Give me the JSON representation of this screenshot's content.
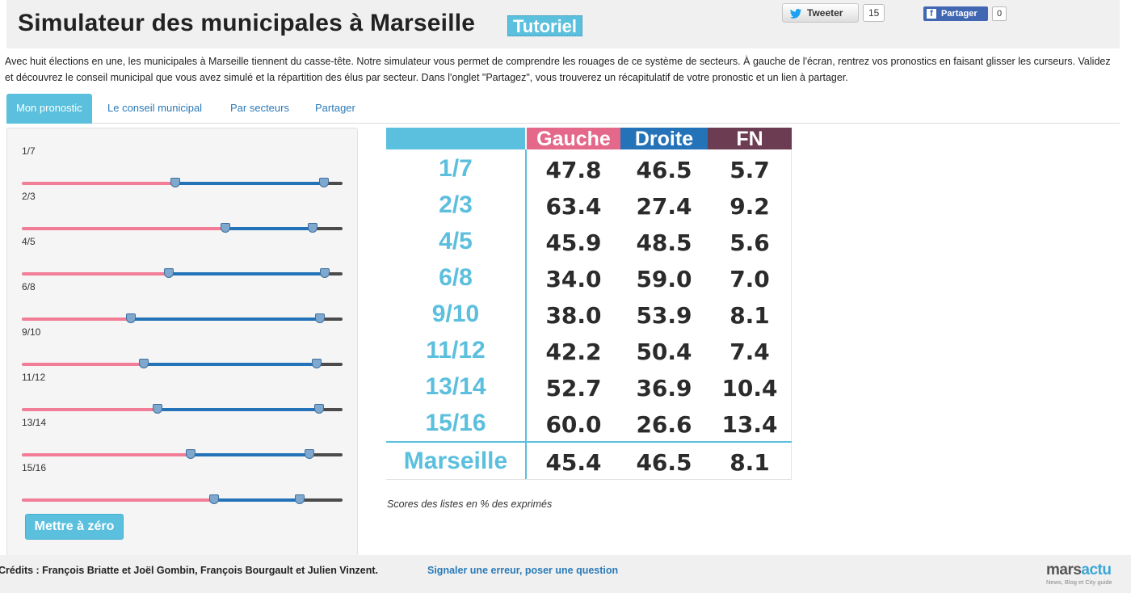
{
  "header": {
    "title": "Simulateur des municipales à Marseille",
    "tutoriel_label": "Tutoriel",
    "tweet_label": "Tweeter",
    "tweet_count": "15",
    "fb_label": "Partager",
    "fb_icon": "f",
    "fb_count": "0"
  },
  "intro": "Avec huit élections en une, les municipales à Marseille tiennent du casse-tête. Notre simulateur vous permet de comprendre les rouages de ce système de secteurs. À gauche de l'écran, rentrez vos pronostics en faisant glisser les curseurs. Validez et découvrez le conseil municipal que vous avez simulé et la répartition des élus par secteur. Dans l'onglet \"Partagez\", vous trouverez un récapitulatif de votre pronostic et un lien à partager.",
  "tabs": [
    {
      "label": "Mon pronostic",
      "active": true
    },
    {
      "label": "Le conseil municipal",
      "active": false
    },
    {
      "label": "Par secteurs",
      "active": false
    },
    {
      "label": "Partager",
      "active": false
    }
  ],
  "sliders": [
    {
      "label": "1/7",
      "gauche": 47.8,
      "droite": 46.5,
      "fn": 5.7
    },
    {
      "label": "2/3",
      "gauche": 63.4,
      "droite": 27.4,
      "fn": 9.2
    },
    {
      "label": "4/5",
      "gauche": 45.9,
      "droite": 48.5,
      "fn": 5.6
    },
    {
      "label": "6/8",
      "gauche": 34.0,
      "droite": 59.0,
      "fn": 7.0
    },
    {
      "label": "9/10",
      "gauche": 38.0,
      "droite": 53.9,
      "fn": 8.1
    },
    {
      "label": "11/12",
      "gauche": 42.2,
      "droite": 50.4,
      "fn": 7.4
    },
    {
      "label": "13/14",
      "gauche": 52.7,
      "droite": 36.9,
      "fn": 10.4
    },
    {
      "label": "15/16",
      "gauche": 60.0,
      "droite": 26.6,
      "fn": 13.4
    }
  ],
  "reset_label": "Mettre à zéro",
  "table": {
    "headers": {
      "gauche": "Gauche",
      "droite": "Droite",
      "fn": "FN"
    },
    "rows": [
      {
        "sector": "1/7",
        "gauche": "47.8",
        "droite": "46.5",
        "fn": "5.7"
      },
      {
        "sector": "2/3",
        "gauche": "63.4",
        "droite": "27.4",
        "fn": "9.2"
      },
      {
        "sector": "4/5",
        "gauche": "45.9",
        "droite": "48.5",
        "fn": "5.6"
      },
      {
        "sector": "6/8",
        "gauche": "34.0",
        "droite": "59.0",
        "fn": "7.0"
      },
      {
        "sector": "9/10",
        "gauche": "38.0",
        "droite": "53.9",
        "fn": "8.1"
      },
      {
        "sector": "11/12",
        "gauche": "42.2",
        "droite": "50.4",
        "fn": "7.4"
      },
      {
        "sector": "13/14",
        "gauche": "52.7",
        "droite": "36.9",
        "fn": "10.4"
      },
      {
        "sector": "15/16",
        "gauche": "60.0",
        "droite": "26.6",
        "fn": "13.4"
      }
    ],
    "total": {
      "sector": "Marseille",
      "gauche": "45.4",
      "droite": "46.5",
      "fn": "8.1"
    }
  },
  "note": "Scores des listes en % des exprimés",
  "footer": {
    "credits": "Crédits : François Briatte et Joël Gombin, François Bourgault et Julien Vinzent.",
    "report_link": "Signaler une erreur, poser une question",
    "logo_main": "mars",
    "logo_accent": "actu",
    "logo_sub": "News, Blog et City guide"
  },
  "colors": {
    "gauche": "#e4688a",
    "droite": "#2472b8",
    "fn": "#6b3c52",
    "accent": "#5bc0de"
  }
}
